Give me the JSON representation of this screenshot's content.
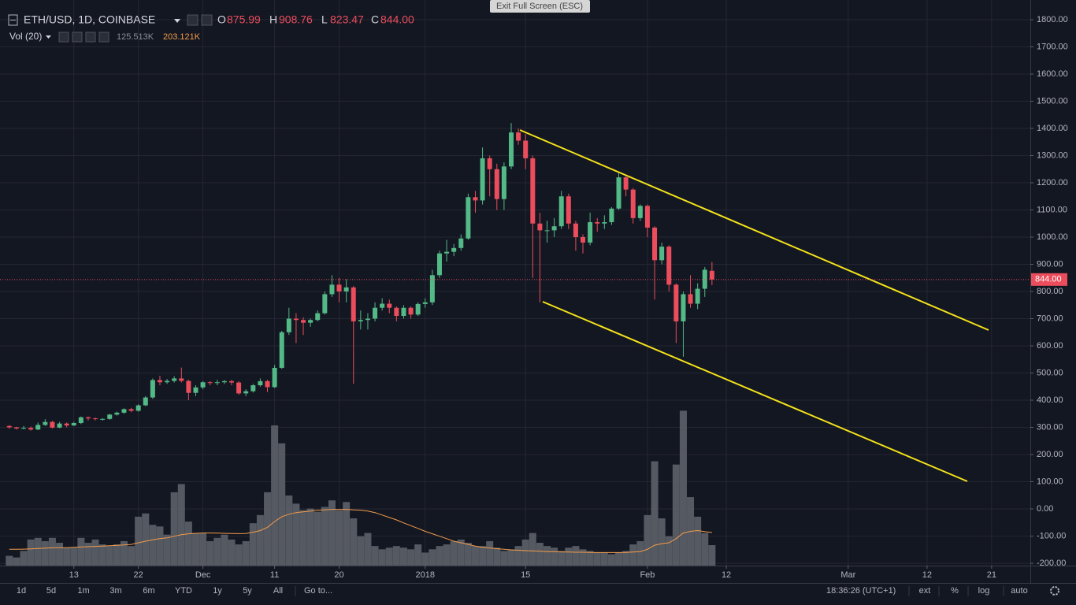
{
  "chart_data": {
    "type": "candlestick",
    "title": "ETH/USD, 1D, COINBASE",
    "readout": {
      "open_label": "O",
      "open": "875.99",
      "high_label": "H",
      "high": "908.76",
      "low_label": "L",
      "low": "823.47",
      "close_label": "C",
      "close": "844.00"
    },
    "volume_title": "Vol (20)",
    "volume_readout": [
      "125.513K",
      "203.121K"
    ],
    "open": [
      305,
      300,
      296,
      298,
      292,
      309,
      320,
      299,
      314,
      307,
      316,
      337,
      333,
      331,
      331,
      347,
      354,
      367,
      361,
      381,
      410,
      474,
      466,
      471,
      480,
      471,
      427,
      447,
      466,
      463,
      466,
      470,
      465,
      425,
      433,
      455,
      470,
      448,
      519,
      650,
      700,
      695,
      685,
      695,
      720,
      790,
      825,
      800,
      815,
      690,
      695,
      700,
      740,
      755,
      740,
      710,
      740,
      715,
      754,
      760,
      860,
      940,
      946,
      960,
      995,
      1147,
      1135,
      1290,
      1250,
      1140,
      1260,
      1385,
      1355,
      1290,
      1050,
      1025,
      1025,
      1040,
      1150,
      1050,
      1000,
      980,
      1055,
      1050,
      1055,
      1105,
      1220,
      1175,
      1070,
      1115,
      1035,
      915,
      965,
      825,
      690,
      790,
      755,
      810,
      875.99
    ],
    "high": [
      308,
      302,
      305,
      303,
      318,
      330,
      324,
      320,
      318,
      320,
      340,
      340,
      336,
      334,
      350,
      358,
      370,
      372,
      385,
      415,
      480,
      490,
      478,
      488,
      520,
      475,
      455,
      470,
      470,
      475,
      474,
      475,
      470,
      440,
      460,
      480,
      475,
      530,
      655,
      740,
      720,
      705,
      700,
      730,
      800,
      860,
      850,
      845,
      820,
      730,
      720,
      760,
      775,
      770,
      745,
      750,
      745,
      760,
      775,
      880,
      950,
      990,
      975,
      1010,
      1160,
      1170,
      1330,
      1300,
      1270,
      1275,
      1420,
      1400,
      1380,
      1300,
      1090,
      1060,
      1070,
      1170,
      1160,
      1060,
      1010,
      1090,
      1070,
      1080,
      1110,
      1240,
      1230,
      1180,
      1120,
      1120,
      1040,
      980,
      970,
      830,
      800,
      860,
      830,
      890,
      908.76
    ],
    "low": [
      295,
      292,
      293,
      288,
      290,
      305,
      296,
      297,
      300,
      305,
      312,
      325,
      326,
      325,
      328,
      343,
      350,
      356,
      358,
      378,
      405,
      455,
      460,
      465,
      465,
      400,
      415,
      440,
      455,
      455,
      460,
      455,
      420,
      415,
      428,
      450,
      430,
      445,
      515,
      640,
      610,
      640,
      670,
      690,
      715,
      780,
      760,
      760,
      460,
      660,
      660,
      690,
      730,
      720,
      690,
      700,
      700,
      710,
      740,
      750,
      850,
      910,
      930,
      950,
      990,
      1090,
      1120,
      1150,
      1100,
      1100,
      1250,
      1340,
      1250,
      850,
      760,
      980,
      1000,
      1030,
      1030,
      950,
      940,
      970,
      1020,
      1030,
      1045,
      1100,
      1150,
      1050,
      1060,
      1000,
      770,
      900,
      800,
      610,
      560,
      740,
      735,
      780,
      823.47
    ],
    "close": [
      300,
      296,
      298,
      292,
      309,
      320,
      299,
      314,
      307,
      316,
      337,
      333,
      331,
      331,
      347,
      354,
      367,
      361,
      381,
      410,
      474,
      466,
      471,
      480,
      471,
      427,
      447,
      466,
      463,
      466,
      470,
      465,
      425,
      433,
      455,
      470,
      448,
      519,
      650,
      700,
      695,
      685,
      695,
      720,
      790,
      825,
      800,
      815,
      690,
      695,
      700,
      740,
      755,
      740,
      710,
      740,
      715,
      754,
      760,
      860,
      940,
      946,
      960,
      995,
      1147,
      1135,
      1290,
      1250,
      1140,
      1260,
      1385,
      1355,
      1290,
      1050,
      1025,
      1025,
      1040,
      1150,
      1050,
      1000,
      980,
      1055,
      1050,
      1055,
      1105,
      1220,
      1175,
      1070,
      1115,
      1035,
      915,
      965,
      825,
      690,
      790,
      755,
      810,
      880,
      844
    ],
    "volume": [
      60,
      50,
      90,
      160,
      170,
      150,
      170,
      140,
      110,
      110,
      170,
      140,
      160,
      130,
      120,
      130,
      150,
      120,
      300,
      320,
      250,
      240,
      190,
      450,
      500,
      270,
      200,
      200,
      150,
      170,
      190,
      160,
      130,
      150,
      260,
      310,
      450,
      860,
      750,
      430,
      380,
      340,
      350,
      330,
      360,
      400,
      340,
      390,
      290,
      180,
      200,
      120,
      100,
      110,
      120,
      110,
      100,
      130,
      80,
      100,
      120,
      130,
      150,
      160,
      140,
      120,
      120,
      150,
      110,
      90,
      100,
      120,
      160,
      200,
      140,
      120,
      110,
      90,
      110,
      120,
      100,
      90,
      80,
      80,
      70,
      80,
      90,
      130,
      150,
      310,
      640,
      290,
      180,
      620,
      950,
      420,
      300,
      200,
      125.513
    ],
    "volume_ma": [
      100,
      100,
      101,
      103,
      105,
      107,
      109,
      110,
      110,
      112,
      114,
      116,
      118,
      120,
      122,
      124,
      127,
      130,
      140,
      150,
      158,
      165,
      170,
      180,
      190,
      195,
      198,
      200,
      200,
      199,
      198,
      197,
      196,
      197,
      205,
      215,
      235,
      270,
      300,
      315,
      325,
      330,
      335,
      340,
      342,
      345,
      345,
      345,
      342,
      340,
      335,
      325,
      310,
      295,
      280,
      262,
      245,
      228,
      210,
      195,
      180,
      165,
      150,
      140,
      130,
      120,
      112,
      108,
      104,
      100,
      96,
      94,
      92,
      90,
      88,
      86,
      85,
      84,
      83,
      82,
      82,
      81,
      80,
      80,
      80,
      80,
      81,
      83,
      86,
      100,
      125,
      135,
      140,
      165,
      200,
      210,
      215,
      208,
      203.121
    ],
    "up_color": "#53b987",
    "down_color": "#eb4d5c",
    "volume_color": "#5d6068",
    "ma_color": "#f39c4b",
    "last_price_label": "844.00",
    "ylim": [
      -208.7,
      1849.3
    ],
    "vlim": [
      0,
      3430
    ],
    "xlim": [
      -1.3,
      142.4
    ],
    "yticks": [
      {
        "value": -200,
        "label": "-200.00"
      },
      {
        "value": -100,
        "label": "-100.00"
      },
      {
        "value": 0,
        "label": "0.00"
      },
      {
        "value": 100,
        "label": "100.00"
      },
      {
        "value": 200,
        "label": "200.00"
      },
      {
        "value": 300,
        "label": "300.00"
      },
      {
        "value": 400,
        "label": "400.00"
      },
      {
        "value": 500,
        "label": "500.00"
      },
      {
        "value": 600,
        "label": "600.00"
      },
      {
        "value": 700,
        "label": "700.00"
      },
      {
        "value": 800,
        "label": "800.00"
      },
      {
        "value": 900,
        "label": "900.00"
      },
      {
        "value": 1000,
        "label": "1000.00"
      },
      {
        "value": 1100,
        "label": "1100.00"
      },
      {
        "value": 1200,
        "label": "1200.00"
      },
      {
        "value": 1300,
        "label": "1300.00"
      },
      {
        "value": 1400,
        "label": "1400.00"
      },
      {
        "value": 1500,
        "label": "1500.00"
      },
      {
        "value": 1600,
        "label": "1600.00"
      },
      {
        "value": 1700,
        "label": "1700.00"
      },
      {
        "value": 1800,
        "label": "1800.00"
      }
    ],
    "xticks": [
      {
        "value": 9,
        "label": "13"
      },
      {
        "value": 18,
        "label": "22"
      },
      {
        "value": 27,
        "label": "Dec"
      },
      {
        "value": 37,
        "label": "11"
      },
      {
        "value": 46,
        "label": "20"
      },
      {
        "value": 58,
        "label": "2018"
      },
      {
        "value": 72,
        "label": "15"
      },
      {
        "value": 89,
        "label": "Feb"
      },
      {
        "value": 100,
        "label": "12"
      },
      {
        "value": 117,
        "label": "Mar"
      },
      {
        "value": 128,
        "label": "12"
      },
      {
        "value": 137,
        "label": "21"
      }
    ],
    "grid": true
  },
  "ui": {
    "exit_button": "Exit Full Screen (ESC)",
    "intervals": [
      "1d",
      "5d",
      "1m",
      "3m",
      "6m",
      "YTD",
      "1y",
      "5y",
      "All"
    ],
    "goto": "Go to...",
    "clock": "18:36:26 (UTC+1)",
    "toggles": [
      "ext",
      "%",
      "log",
      "auto"
    ]
  }
}
